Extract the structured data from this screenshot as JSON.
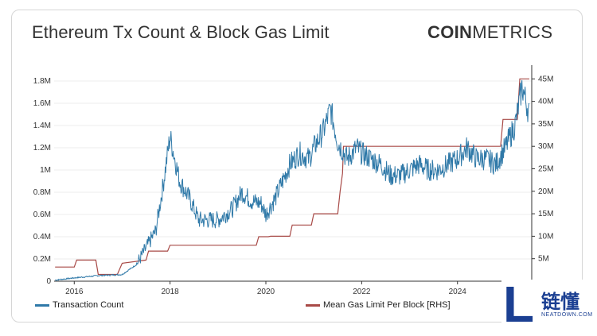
{
  "title": "Ethereum Tx Count & Block Gas Limit",
  "logo": {
    "bold": "COIN",
    "regular": "METRICS"
  },
  "watermark": {
    "cn": "链懂",
    "en": "NEATDOWN.COM",
    "letter": "L"
  },
  "colors": {
    "tx": "#2f79a8",
    "gas": "#a84a47",
    "axis": "#333333",
    "grid": "#eeeeee"
  },
  "chart_data": {
    "type": "line",
    "title": "Ethereum Tx Count & Block Gas Limit",
    "x_ticks": [
      "2016",
      "2018",
      "2020",
      "2022",
      "2024"
    ],
    "x_tick_years": [
      2016,
      2018,
      2020,
      2022,
      2024
    ],
    "xlim": [
      2015.58,
      2025.55
    ],
    "y_left": {
      "ticks": [
        "0",
        "0.2M",
        "0.4M",
        "0.6M",
        "0.8M",
        "1M",
        "1.2M",
        "1.4M",
        "1.6M",
        "1.8M"
      ],
      "tick_values": [
        0,
        0.2,
        0.4,
        0.6,
        0.8,
        1.0,
        1.2,
        1.4,
        1.6,
        1.8
      ],
      "ylim": [
        0,
        1.9
      ]
    },
    "y_right": {
      "ticks": [
        "5M",
        "10M",
        "15M",
        "20M",
        "25M",
        "30M",
        "35M",
        "40M",
        "45M"
      ],
      "tick_values": [
        5,
        10,
        15,
        20,
        25,
        30,
        35,
        40,
        45
      ],
      "ylim": [
        0,
        47
      ]
    },
    "series": [
      {
        "name": "Transaction Count",
        "axis": "left",
        "x": [
          2015.6,
          2016.0,
          2016.5,
          2017.0,
          2017.3,
          2017.5,
          2017.7,
          2017.85,
          2018.0,
          2018.05,
          2018.2,
          2018.4,
          2018.6,
          2018.8,
          2019.0,
          2019.3,
          2019.5,
          2019.7,
          2019.9,
          2020.0,
          2020.2,
          2020.5,
          2020.7,
          2020.9,
          2021.0,
          2021.2,
          2021.35,
          2021.5,
          2021.7,
          2021.9,
          2022.0,
          2022.2,
          2022.4,
          2022.6,
          2022.8,
          2023.0,
          2023.2,
          2023.4,
          2023.6,
          2023.8,
          2024.0,
          2024.2,
          2024.4,
          2024.6,
          2024.8,
          2025.0,
          2025.2,
          2025.35,
          2025.5
        ],
        "values": [
          0.01,
          0.03,
          0.05,
          0.06,
          0.15,
          0.3,
          0.45,
          0.85,
          1.3,
          1.2,
          0.9,
          0.75,
          0.55,
          0.55,
          0.55,
          0.65,
          0.8,
          0.72,
          0.7,
          0.6,
          0.75,
          1.05,
          1.15,
          1.1,
          1.2,
          1.35,
          1.55,
          1.25,
          1.1,
          1.2,
          1.15,
          1.1,
          1.05,
          0.95,
          0.95,
          1.0,
          1.05,
          1.0,
          1.0,
          1.05,
          1.1,
          1.2,
          1.1,
          1.1,
          1.05,
          1.2,
          1.4,
          1.75,
          1.5
        ]
      },
      {
        "name": "Mean Gas Limit Per Block [RHS]",
        "axis": "right",
        "x": [
          2015.6,
          2016.0,
          2016.05,
          2016.45,
          2016.5,
          2016.9,
          2017.0,
          2017.5,
          2017.55,
          2017.95,
          2018.0,
          2019.8,
          2019.85,
          2020.05,
          2020.1,
          2020.5,
          2020.55,
          2020.95,
          2021.0,
          2021.5,
          2021.55,
          2021.6,
          2021.62,
          2024.3,
          2024.35,
          2024.9,
          2024.95,
          2025.25,
          2025.3,
          2025.5
        ],
        "values": [
          3.14,
          3.14,
          4.7,
          4.7,
          1.5,
          1.5,
          4.0,
          4.7,
          6.7,
          6.7,
          8.0,
          8.0,
          9.9,
          9.9,
          10.0,
          10.0,
          12.5,
          12.5,
          15.0,
          15.0,
          20.0,
          24.0,
          30.0,
          30.0,
          30.0,
          30.0,
          36.0,
          36.0,
          45.0,
          45.0
        ]
      }
    ],
    "legend": [
      "Transaction Count",
      "Mean Gas Limit Per Block [RHS]"
    ],
    "legend_position": "bottom",
    "grid": true
  }
}
